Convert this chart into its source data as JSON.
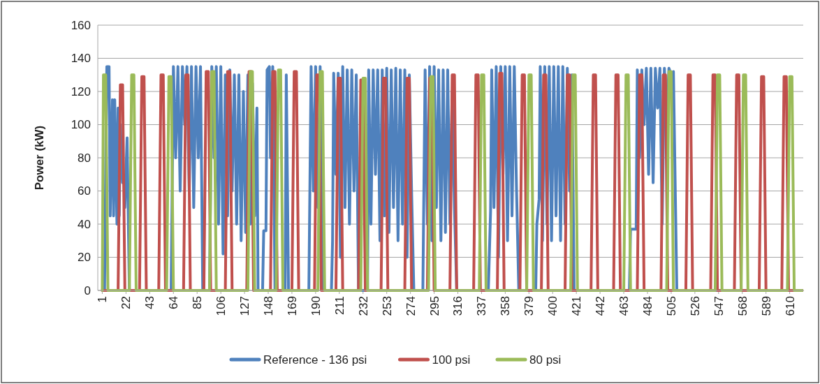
{
  "chart_data": {
    "type": "line",
    "ylabel": "Power (kW)",
    "xlim": [
      -3,
      622
    ],
    "xticks": [
      1,
      22,
      43,
      64,
      85,
      106,
      127,
      148,
      169,
      190,
      211,
      232,
      253,
      274,
      295,
      316,
      337,
      358,
      379,
      400,
      421,
      442,
      463,
      484,
      505,
      526,
      547,
      568,
      589,
      610
    ],
    "ylim": [
      0,
      160
    ],
    "yticks": [
      0,
      20,
      40,
      60,
      80,
      100,
      120,
      140,
      160
    ],
    "grid": "y",
    "legend": "bottom",
    "marker": "none",
    "line_style": "solid",
    "series": [
      {
        "name": "Reference - 136 psi",
        "color": "#4f81bd",
        "x": [
          1,
          3,
          5,
          7,
          8,
          10,
          11,
          12,
          14,
          15,
          16,
          17,
          19,
          20,
          21,
          23,
          25,
          62,
          64,
          66,
          68,
          70,
          72,
          74,
          76,
          78,
          80,
          82,
          84,
          86,
          88,
          90,
          96,
          98,
          100,
          102,
          104,
          106,
          108,
          110,
          112,
          114,
          116,
          118,
          120,
          122,
          124,
          126,
          128,
          130,
          132,
          134,
          136,
          138,
          139,
          143,
          144,
          146,
          147,
          149,
          150,
          152,
          154,
          163,
          164,
          166,
          184,
          186,
          188,
          190,
          192,
          194,
          196,
          204,
          205,
          206,
          208,
          210,
          212,
          214,
          216,
          218,
          220,
          222,
          224,
          226,
          228,
          236,
          237,
          239,
          241,
          243,
          245,
          247,
          249,
          251,
          253,
          255,
          257,
          259,
          261,
          263,
          265,
          267,
          269,
          271,
          273,
          275,
          277,
          285,
          287,
          289,
          291,
          293,
          295,
          297,
          299,
          301,
          303,
          305,
          307,
          309,
          311,
          313,
          315,
          343,
          345,
          346,
          348,
          350,
          352,
          354,
          356,
          358,
          360,
          362,
          364,
          366,
          368,
          370,
          385,
          386,
          388,
          389,
          391,
          393,
          395,
          397,
          399,
          401,
          403,
          405,
          407,
          409,
          411,
          413,
          415,
          417,
          419,
          468,
          469,
          474,
          475,
          477,
          479,
          481,
          483,
          485,
          487,
          489,
          491,
          493,
          495,
          497,
          499,
          501,
          503,
          505,
          507,
          510,
          621
        ],
        "values": [
          0,
          0,
          135,
          135,
          45,
          115,
          45,
          115,
          40,
          110,
          45,
          100,
          65,
          70,
          50,
          92,
          0,
          0,
          135,
          80,
          135,
          60,
          135,
          100,
          135,
          60,
          135,
          50,
          135,
          80,
          135,
          0,
          0,
          135,
          80,
          135,
          40,
          135,
          22,
          130,
          45,
          133,
          60,
          130,
          40,
          130,
          30,
          120,
          35,
          130,
          40,
          125,
          45,
          110,
          0,
          0,
          36,
          36,
          133,
          135,
          80,
          135,
          0,
          0,
          130,
          0,
          0,
          135,
          60,
          135,
          50,
          135,
          0,
          0,
          30,
          131,
          70,
          131,
          20,
          135,
          50,
          133,
          40,
          133,
          60,
          130,
          0,
          0,
          133,
          40,
          133,
          70,
          133,
          30,
          133,
          45,
          134,
          35,
          133,
          50,
          134,
          30,
          133,
          40,
          133,
          20,
          130,
          60,
          0,
          0,
          133,
          40,
          135,
          30,
          135,
          50,
          133,
          30,
          133,
          35,
          133,
          40,
          120,
          50,
          0,
          0,
          48,
          133,
          50,
          135,
          20,
          135,
          70,
          135,
          30,
          135,
          45,
          135,
          60,
          0,
          0,
          40,
          55,
          135,
          30,
          135,
          40,
          135,
          30,
          135,
          45,
          135,
          30,
          135,
          40,
          134,
          60,
          130,
          0,
          0,
          37,
          37,
          133,
          80,
          133,
          100,
          134,
          70,
          134,
          65,
          134,
          110,
          134,
          40,
          134,
          100,
          134,
          130,
          132,
          0,
          0
        ]
      },
      {
        "name": "100 psi",
        "color": "#c0504d",
        "x": [
          1,
          15,
          17,
          19,
          21,
          34,
          36,
          38,
          40,
          51,
          53,
          55,
          57,
          73,
          75,
          77,
          79,
          91,
          93,
          95,
          97,
          110,
          112,
          114,
          116,
          129,
          131,
          133,
          135,
          150,
          152,
          154,
          156,
          169,
          171,
          173,
          175,
          189,
          191,
          193,
          195,
          208,
          210,
          212,
          214,
          228,
          230,
          232,
          234,
          248,
          250,
          252,
          254,
          269,
          271,
          273,
          275,
          289,
          291,
          293,
          295,
          309,
          311,
          313,
          315,
          330,
          332,
          334,
          336,
          351,
          353,
          355,
          357,
          371,
          373,
          375,
          377,
          390,
          392,
          394,
          396,
          411,
          413,
          415,
          417,
          434,
          436,
          438,
          440,
          454,
          456,
          458,
          460,
          475,
          477,
          479,
          481,
          496,
          498,
          500,
          502,
          518,
          520,
          522,
          524,
          540,
          542,
          544,
          546,
          561,
          563,
          565,
          567,
          583,
          585,
          587,
          589,
          603,
          605,
          607,
          609,
          621
        ],
        "values": [
          0,
          0,
          124,
          124,
          0,
          0,
          129,
          129,
          0,
          0,
          130,
          130,
          0,
          0,
          130,
          130,
          0,
          0,
          132,
          132,
          0,
          0,
          132,
          132,
          0,
          0,
          132,
          132,
          0,
          0,
          132,
          132,
          0,
          0,
          132,
          132,
          0,
          0,
          130,
          130,
          0,
          0,
          128,
          128,
          0,
          0,
          127,
          127,
          0,
          0,
          128,
          128,
          0,
          0,
          128,
          128,
          0,
          0,
          128,
          128,
          0,
          0,
          130,
          130,
          0,
          0,
          130,
          130,
          0,
          0,
          131,
          131,
          0,
          0,
          130,
          130,
          0,
          0,
          130,
          130,
          0,
          0,
          130,
          130,
          0,
          0,
          130,
          130,
          0,
          0,
          130,
          130,
          0,
          0,
          130,
          130,
          0,
          0,
          130,
          130,
          0,
          0,
          130,
          130,
          0,
          0,
          130,
          130,
          0,
          0,
          130,
          130,
          0,
          0,
          129,
          129,
          0,
          0,
          129,
          129,
          0,
          0
        ]
      },
      {
        "name": "80 psi",
        "color": "#9bbb59",
        "x": [
          1,
          2,
          4,
          6,
          25,
          27,
          29,
          31,
          58,
          60,
          62,
          64,
          96,
          98,
          100,
          102,
          130,
          132,
          134,
          136,
          155,
          157,
          159,
          161,
          192,
          194,
          196,
          198,
          230,
          232,
          234,
          236,
          290,
          292,
          294,
          296,
          335,
          337,
          339,
          341,
          377,
          379,
          381,
          383,
          416,
          418,
          420,
          422,
          463,
          465,
          467,
          469,
          501,
          503,
          505,
          507,
          544,
          546,
          548,
          550,
          567,
          569,
          571,
          573,
          608,
          610,
          612,
          614,
          621
        ],
        "values": [
          0,
          130,
          130,
          0,
          0,
          130,
          130,
          0,
          0,
          129,
          129,
          0,
          0,
          132,
          132,
          0,
          0,
          132,
          132,
          0,
          0,
          133,
          133,
          0,
          0,
          132,
          132,
          0,
          0,
          128,
          128,
          0,
          0,
          129,
          129,
          0,
          0,
          130,
          130,
          0,
          0,
          130,
          130,
          0,
          0,
          130,
          130,
          0,
          0,
          130,
          130,
          0,
          0,
          132,
          132,
          0,
          0,
          130,
          130,
          0,
          0,
          130,
          130,
          0,
          0,
          129,
          129,
          0,
          0
        ]
      }
    ]
  }
}
